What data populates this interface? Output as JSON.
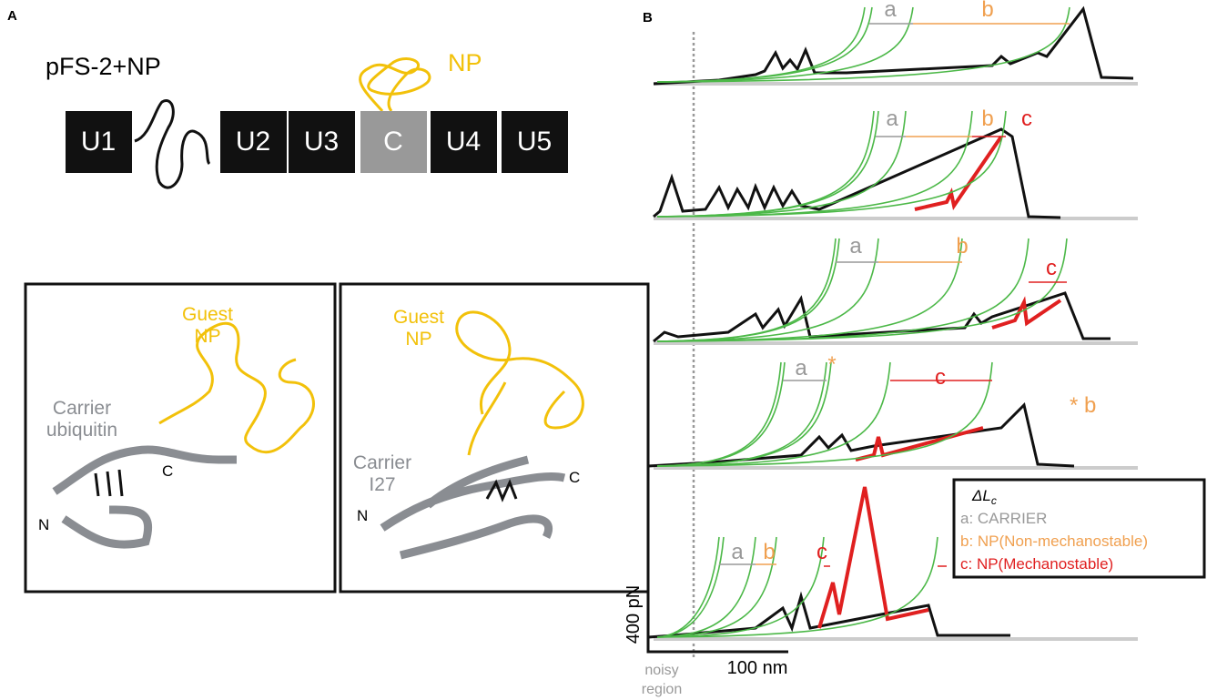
{
  "panel_a": {
    "label": "A",
    "construct": "pFS-2+NP",
    "np_label": "NP",
    "domains": [
      "U1",
      "U2",
      "U3",
      "C",
      "U4",
      "U5"
    ],
    "structures": [
      {
        "guest": [
          "Guest",
          "NP"
        ],
        "carrier": [
          "Carrier",
          "ubiquitin"
        ],
        "n_term": "N",
        "c_term": "C"
      },
      {
        "guest": [
          "Guest",
          "NP"
        ],
        "carrier": [
          "Carrier",
          "I27"
        ],
        "n_term": "N",
        "c_term": "C"
      }
    ]
  },
  "panel_b": {
    "label": "B",
    "traces": [
      {
        "labels": [
          "a",
          "b"
        ]
      },
      {
        "labels": [
          "a",
          "b",
          "c"
        ]
      },
      {
        "labels": [
          "a",
          "b",
          "c"
        ]
      },
      {
        "labels": [
          "a",
          "*",
          "c"
        ]
      },
      {
        "labels": [
          "a",
          "b",
          "c"
        ]
      }
    ],
    "footnote": "* b",
    "legend": {
      "title": "ΔL",
      "title_sub": "c",
      "items": [
        "a: CARRIER",
        "b: NP(Non-mechanostable)",
        "c: NP(Mechanostable)"
      ]
    },
    "scale": {
      "force": "400 pN",
      "length": "100 nm"
    },
    "noisy_region": [
      "noisy",
      "region"
    ]
  }
}
